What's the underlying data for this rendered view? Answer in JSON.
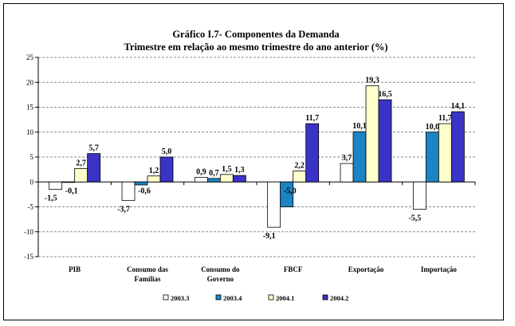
{
  "chart_data": {
    "type": "bar",
    "title": "Gráfico I.7- Componentes da Demanda",
    "subtitle": "Trimestre em relação ao mesmo trimestre do ano anterior (%)",
    "categories": [
      [
        "PIB"
      ],
      [
        "Consumo das",
        "Famílias"
      ],
      [
        "Consumo do",
        "Governo"
      ],
      [
        "FBCF"
      ],
      [
        "Exportação"
      ],
      [
        "Importação"
      ]
    ],
    "series": [
      {
        "name": "2003.3",
        "color": "#ffffff",
        "values": [
          -1.5,
          -3.7,
          0.9,
          -9.1,
          3.7,
          -5.5
        ],
        "labels": [
          "-1,5",
          "-3,7",
          "0,9",
          "-9,1",
          "3,7",
          "-5,5"
        ]
      },
      {
        "name": "2003.4",
        "color": "#1c83c4",
        "values": [
          -0.1,
          -0.6,
          0.7,
          -5.0,
          10.1,
          10.0
        ],
        "labels": [
          "-0,1",
          "-0,6",
          "0,7",
          "-5,0",
          "10,1",
          "10,0"
        ]
      },
      {
        "name": "2004.1",
        "color": "#ffffcc",
        "values": [
          2.7,
          1.2,
          1.5,
          2.2,
          19.3,
          11.7
        ],
        "labels": [
          "2,7",
          "1,2",
          "1,5",
          "2,2",
          "19,3",
          "11,7"
        ]
      },
      {
        "name": "2004.2",
        "color": "#3a33c5",
        "values": [
          5.7,
          5.0,
          1.3,
          11.7,
          16.5,
          14.1
        ],
        "labels": [
          "5,7",
          "5,0",
          "1,3",
          "11,7",
          "16,5",
          "14,1"
        ]
      }
    ],
    "yticks": [
      "25",
      "20",
      "15",
      "10",
      "5",
      "0",
      "-5",
      "-10",
      "-15"
    ],
    "ylim": [
      -15,
      25
    ],
    "grid": true,
    "legend_position": "bottom"
  }
}
